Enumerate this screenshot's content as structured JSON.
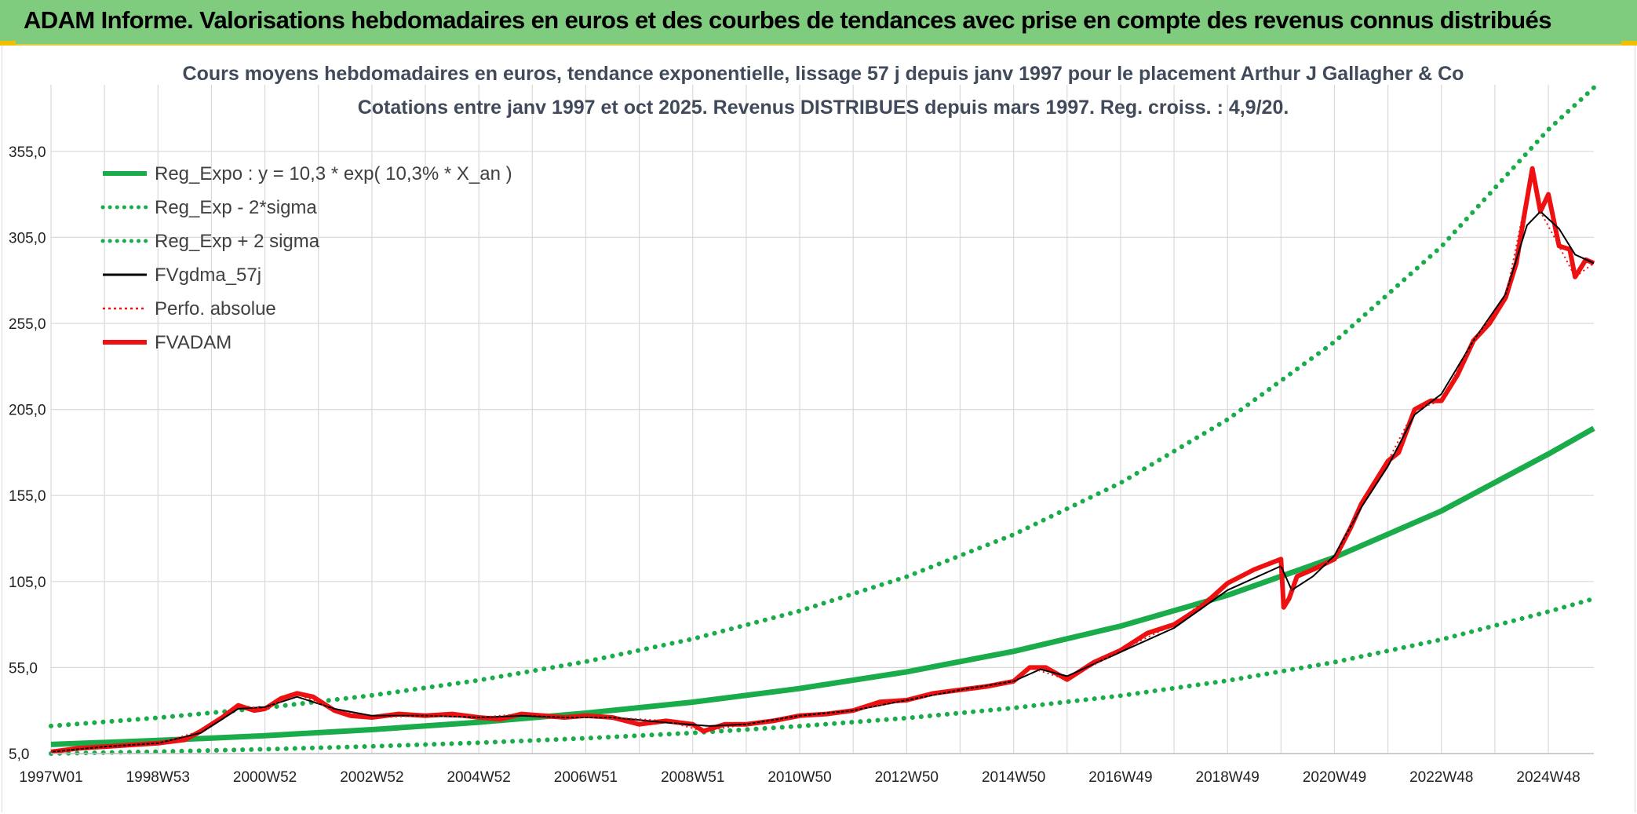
{
  "banner": {
    "title": "ADAM Informe. Valorisations hebdomadaires en euros et des courbes de tendances avec prise en compte des revenus connus distribués"
  },
  "colors": {
    "banner_bg": "#7fcc7f",
    "trend_green": "#1aab4a",
    "price_red": "#ee1111",
    "smooth_black": "#000000",
    "grid": "#d9d9d9"
  },
  "chart_data": {
    "type": "line",
    "title_line1": "Cours moyens hebdomadaires en euros, tendance exponentielle, lissage 57 j depuis janv 1997 pour le placement Arthur J Gallagher & Co",
    "title_line2": "Cotations entre janv 1997 et oct 2025. Revenus DISTRIBUES depuis mars 1997. Reg. croiss. : 4,9/20.",
    "x_range_years": [
      1997.0,
      2025.85
    ],
    "ylim": [
      5,
      380
    ],
    "y_ticks": [
      5,
      55,
      105,
      155,
      205,
      255,
      305,
      355
    ],
    "y_tick_labels": [
      "5,0",
      "55,0",
      "105,0",
      "155,0",
      "205,0",
      "255,0",
      "305,0",
      "355,0"
    ],
    "x_ticks": [
      1997.0,
      1998.0,
      1999.0,
      2000.0,
      2001.0,
      2002.0,
      2003.0,
      2004.0,
      2005.0,
      2006.0,
      2007.0,
      2008.0,
      2009.0,
      2010.0,
      2011.0,
      2012.0,
      2013.0,
      2014.0,
      2015.0,
      2016.0,
      2017.0,
      2018.0,
      2019.0,
      2020.0,
      2021.0,
      2022.0,
      2023.0,
      2024.0,
      2025.0
    ],
    "x_labels": [
      {
        "x": 1997.0,
        "label": "1997W01"
      },
      {
        "x": 1999.0,
        "label": "1998W53"
      },
      {
        "x": 2001.0,
        "label": "2000W52"
      },
      {
        "x": 2003.0,
        "label": "2002W52"
      },
      {
        "x": 2005.0,
        "label": "2004W52"
      },
      {
        "x": 2007.0,
        "label": "2006W51"
      },
      {
        "x": 2009.0,
        "label": "2008W51"
      },
      {
        "x": 2011.0,
        "label": "2010W50"
      },
      {
        "x": 2013.0,
        "label": "2012W50"
      },
      {
        "x": 2015.0,
        "label": "2014W50"
      },
      {
        "x": 2017.0,
        "label": "2016W49"
      },
      {
        "x": 2019.0,
        "label": "2018W49"
      },
      {
        "x": 2021.0,
        "label": "2020W49"
      },
      {
        "x": 2023.0,
        "label": "2022W48"
      },
      {
        "x": 2025.0,
        "label": "2024W48"
      }
    ],
    "legend": [
      {
        "key": "reg",
        "label": "Reg_Expo : y = 10,3 * exp( 10,3% *  X_an )",
        "color": "#1aab4a",
        "style": "solid-thick"
      },
      {
        "key": "low",
        "label": "Reg_Exp - 2*sigma",
        "color": "#1aab4a",
        "style": "dotted"
      },
      {
        "key": "high",
        "label": "Reg_Exp + 2 sigma",
        "color": "#1aab4a",
        "style": "dotted"
      },
      {
        "key": "smooth",
        "label": "FVgdma_57j",
        "color": "#000000",
        "style": "solid"
      },
      {
        "key": "perf",
        "label": "Perfo. absolue",
        "color": "#ee1111",
        "style": "dotted-thin"
      },
      {
        "key": "fvadam",
        "label": "FVADAM",
        "color": "#ee1111",
        "style": "solid-thick"
      }
    ],
    "series": [
      {
        "name": "Reg_Expo",
        "x": [
          1997,
          1999,
          2001,
          2003,
          2005,
          2007,
          2009,
          2011,
          2013,
          2015,
          2017,
          2019,
          2021,
          2023,
          2025,
          2025.85
        ],
        "values": [
          10.3,
          12.6,
          15.4,
          18.9,
          23.2,
          28.5,
          34.9,
          42.8,
          52.5,
          64.4,
          79.1,
          97.0,
          119.0,
          146.0,
          179.1,
          194.0
        ]
      },
      {
        "name": "Reg_Exp - 2*sigma",
        "x": [
          1997,
          1999,
          2001,
          2003,
          2005,
          2007,
          2009,
          2011,
          2013,
          2015,
          2017,
          2019,
          2021,
          2023,
          2025,
          2025.85
        ],
        "values": [
          5.0,
          6.1,
          7.5,
          9.2,
          11.3,
          13.9,
          17.0,
          20.9,
          25.6,
          31.5,
          38.6,
          47.4,
          58.1,
          71.3,
          87.5,
          95.0
        ]
      },
      {
        "name": "Reg_Exp + 2 sigma",
        "x": [
          1997,
          1999,
          2001,
          2003,
          2005,
          2007,
          2009,
          2011,
          2013,
          2015,
          2017,
          2019,
          2021,
          2023,
          2025,
          2025.85
        ],
        "values": [
          21.0,
          25.8,
          31.6,
          38.8,
          47.6,
          58.4,
          71.6,
          87.9,
          107.8,
          132.3,
          162.3,
          199.1,
          244.3,
          299.7,
          367.7,
          392.0
        ]
      },
      {
        "name": "FVADAM",
        "x": [
          1997.0,
          1997.5,
          1998.0,
          1998.5,
          1999.0,
          1999.5,
          1999.8,
          2000.2,
          2000.5,
          2000.8,
          2001.0,
          2001.3,
          2001.6,
          2001.9,
          2002.3,
          2002.6,
          2003.0,
          2003.5,
          2004.0,
          2004.5,
          2005.0,
          2005.4,
          2005.8,
          2006.2,
          2006.6,
          2007.0,
          2007.5,
          2008.0,
          2008.5,
          2009.0,
          2009.2,
          2009.6,
          2010.0,
          2010.5,
          2011.0,
          2011.5,
          2012.0,
          2012.5,
          2013.0,
          2013.5,
          2014.0,
          2014.5,
          2015.0,
          2015.3,
          2015.6,
          2016.0,
          2016.5,
          2017.0,
          2017.5,
          2018.0,
          2018.5,
          2019.0,
          2019.5,
          2020.0,
          2020.05,
          2020.15,
          2020.3,
          2020.6,
          2021.0,
          2021.3,
          2021.5,
          2021.8,
          2022.0,
          2022.2,
          2022.5,
          2022.8,
          2023.0,
          2023.3,
          2023.6,
          2023.9,
          2024.2,
          2024.4,
          2024.55,
          2024.7,
          2024.85,
          2025.0,
          2025.2,
          2025.4,
          2025.5,
          2025.7,
          2025.85
        ],
        "values": [
          6,
          8,
          9,
          10,
          11,
          13,
          18,
          26,
          33,
          30,
          31,
          37,
          40,
          38,
          30,
          27,
          26,
          28,
          27,
          28,
          26,
          25,
          28,
          27,
          26,
          27,
          26,
          22,
          24,
          22,
          18,
          22,
          22,
          24,
          27,
          28,
          30,
          35,
          36,
          40,
          42,
          44,
          47,
          55,
          55,
          48,
          58,
          65,
          75,
          80,
          90,
          104,
          112,
          118,
          90,
          95,
          108,
          112,
          118,
          136,
          150,
          165,
          175,
          180,
          205,
          210,
          210,
          225,
          245,
          255,
          270,
          290,
          318,
          345,
          320,
          330,
          300,
          298,
          282,
          292,
          290
        ]
      },
      {
        "name": "FVgdma_57j",
        "x": [
          1997.0,
          1998.0,
          1999.0,
          1999.8,
          2000.5,
          2001.0,
          2001.6,
          2002.3,
          2003.0,
          2004.0,
          2005.0,
          2005.8,
          2006.6,
          2007.5,
          2008.5,
          2009.3,
          2010.0,
          2011.0,
          2012.0,
          2013.0,
          2014.0,
          2015.0,
          2015.5,
          2016.0,
          2017.0,
          2018.0,
          2019.0,
          2020.0,
          2020.2,
          2020.6,
          2021.0,
          2021.5,
          2022.0,
          2022.5,
          2023.0,
          2023.6,
          2024.2,
          2024.6,
          2024.85,
          2025.2,
          2025.5,
          2025.85
        ],
        "values": [
          6,
          9,
          11,
          17,
          31,
          32,
          38,
          31,
          27,
          27,
          26,
          27,
          26,
          26,
          23,
          21,
          22,
          27,
          30,
          36,
          42,
          47,
          54,
          50,
          64,
          78,
          100,
          114,
          100,
          108,
          120,
          148,
          172,
          202,
          214,
          245,
          272,
          312,
          320,
          310,
          295,
          290
        ]
      },
      {
        "name": "Perfo. absolue",
        "x": [
          1997.0,
          1998.0,
          1999.0,
          1999.8,
          2000.5,
          2001.0,
          2001.6,
          2002.3,
          2003.0,
          2004.0,
          2005.0,
          2005.8,
          2006.6,
          2007.5,
          2008.5,
          2009.2,
          2010.0,
          2011.0,
          2012.0,
          2013.0,
          2014.0,
          2015.0,
          2015.3,
          2016.0,
          2017.0,
          2018.0,
          2019.0,
          2020.0,
          2020.05,
          2020.3,
          2021.0,
          2021.5,
          2022.0,
          2022.5,
          2023.0,
          2023.6,
          2024.2,
          2024.7,
          2024.85,
          2025.2,
          2025.5,
          2025.85
        ],
        "values": [
          6,
          9,
          11,
          18,
          33,
          31,
          40,
          30,
          26,
          27,
          26,
          28,
          26,
          26,
          24,
          18,
          22,
          27,
          30,
          36,
          42,
          47,
          55,
          48,
          65,
          80,
          104,
          118,
          90,
          108,
          118,
          150,
          175,
          205,
          210,
          245,
          270,
          345,
          320,
          300,
          282,
          290
        ]
      }
    ]
  }
}
